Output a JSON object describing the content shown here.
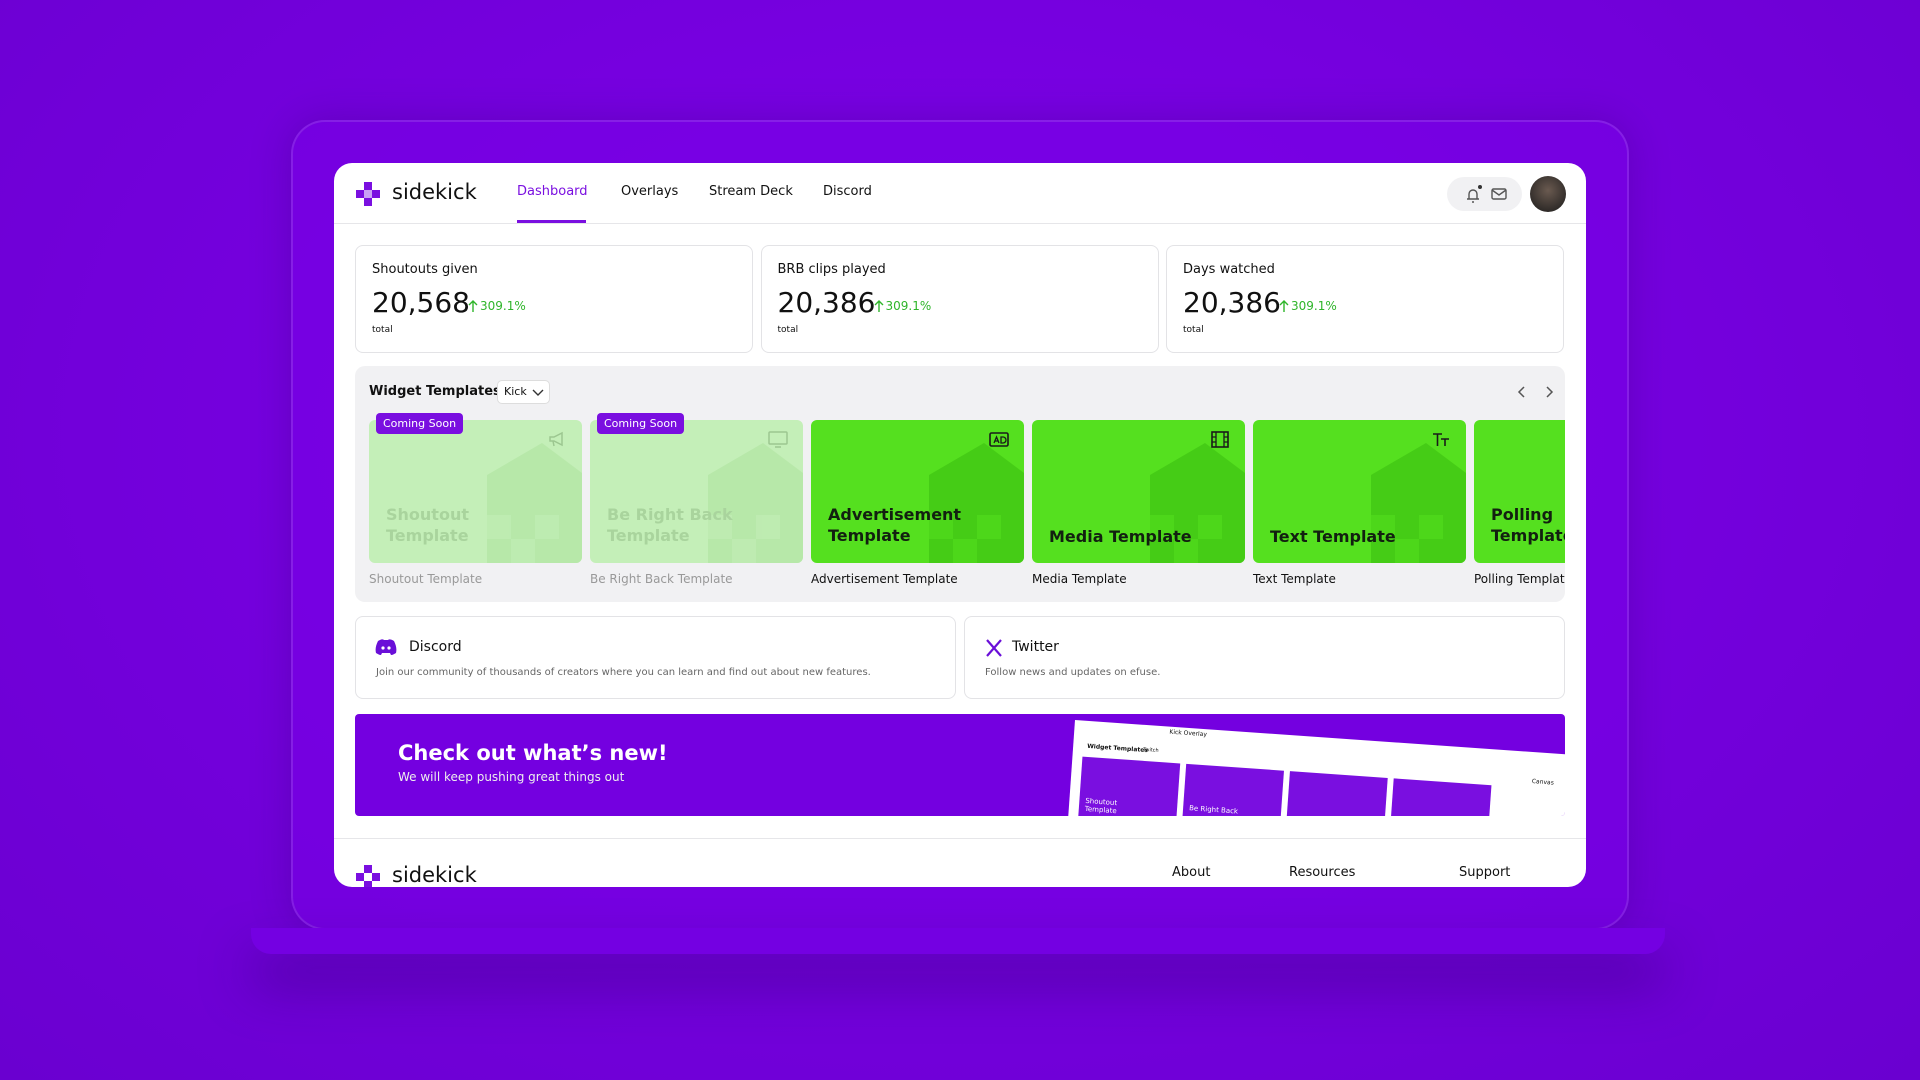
{
  "nav": {
    "brand": "sidekick",
    "links": [
      "Dashboard",
      "Overlays",
      "Stream Deck",
      "Discord"
    ],
    "active": 0
  },
  "stats": [
    {
      "label": "Shoutouts given",
      "value": "20,568",
      "change": "309.1%",
      "unit": "total"
    },
    {
      "label": "BRB clips played",
      "value": "20,386",
      "change": "309.1%",
      "unit": "total"
    },
    {
      "label": "Days watched",
      "value": "20,386",
      "change": "309.1%",
      "unit": "total"
    }
  ],
  "widgets": {
    "title": "Widget Templates",
    "platform": "Kick",
    "templates": [
      {
        "name": "Shoutout Template",
        "badge": "Coming Soon",
        "icon": "megaphone"
      },
      {
        "name": "Be Right Back Template",
        "badge": "Coming Soon",
        "icon": "monitor"
      },
      {
        "name": "Advertisement Template",
        "icon": "ad"
      },
      {
        "name": "Media Template",
        "icon": "film"
      },
      {
        "name": "Text Template",
        "icon": "text"
      },
      {
        "name": "Polling Template",
        "icon": "poll"
      }
    ]
  },
  "community": [
    {
      "title": "Discord",
      "text": "Join our community of thousands of creators where you can learn and find out about new features."
    },
    {
      "title": "Twitter",
      "text": "Follow news and updates on efuse."
    }
  ],
  "banner": {
    "title": "Check out what’s new!",
    "subtitle": "We will keep pushing great things out",
    "preview": {
      "tab": "Kick Overlay",
      "title": "Widget Templates",
      "platform": "Twitch",
      "cards": [
        "Shoutout Template",
        "Be Right Back"
      ],
      "side": "Canvas"
    }
  },
  "footer": {
    "brand": "sidekick",
    "links": [
      "About",
      "Resources",
      "Support"
    ]
  }
}
